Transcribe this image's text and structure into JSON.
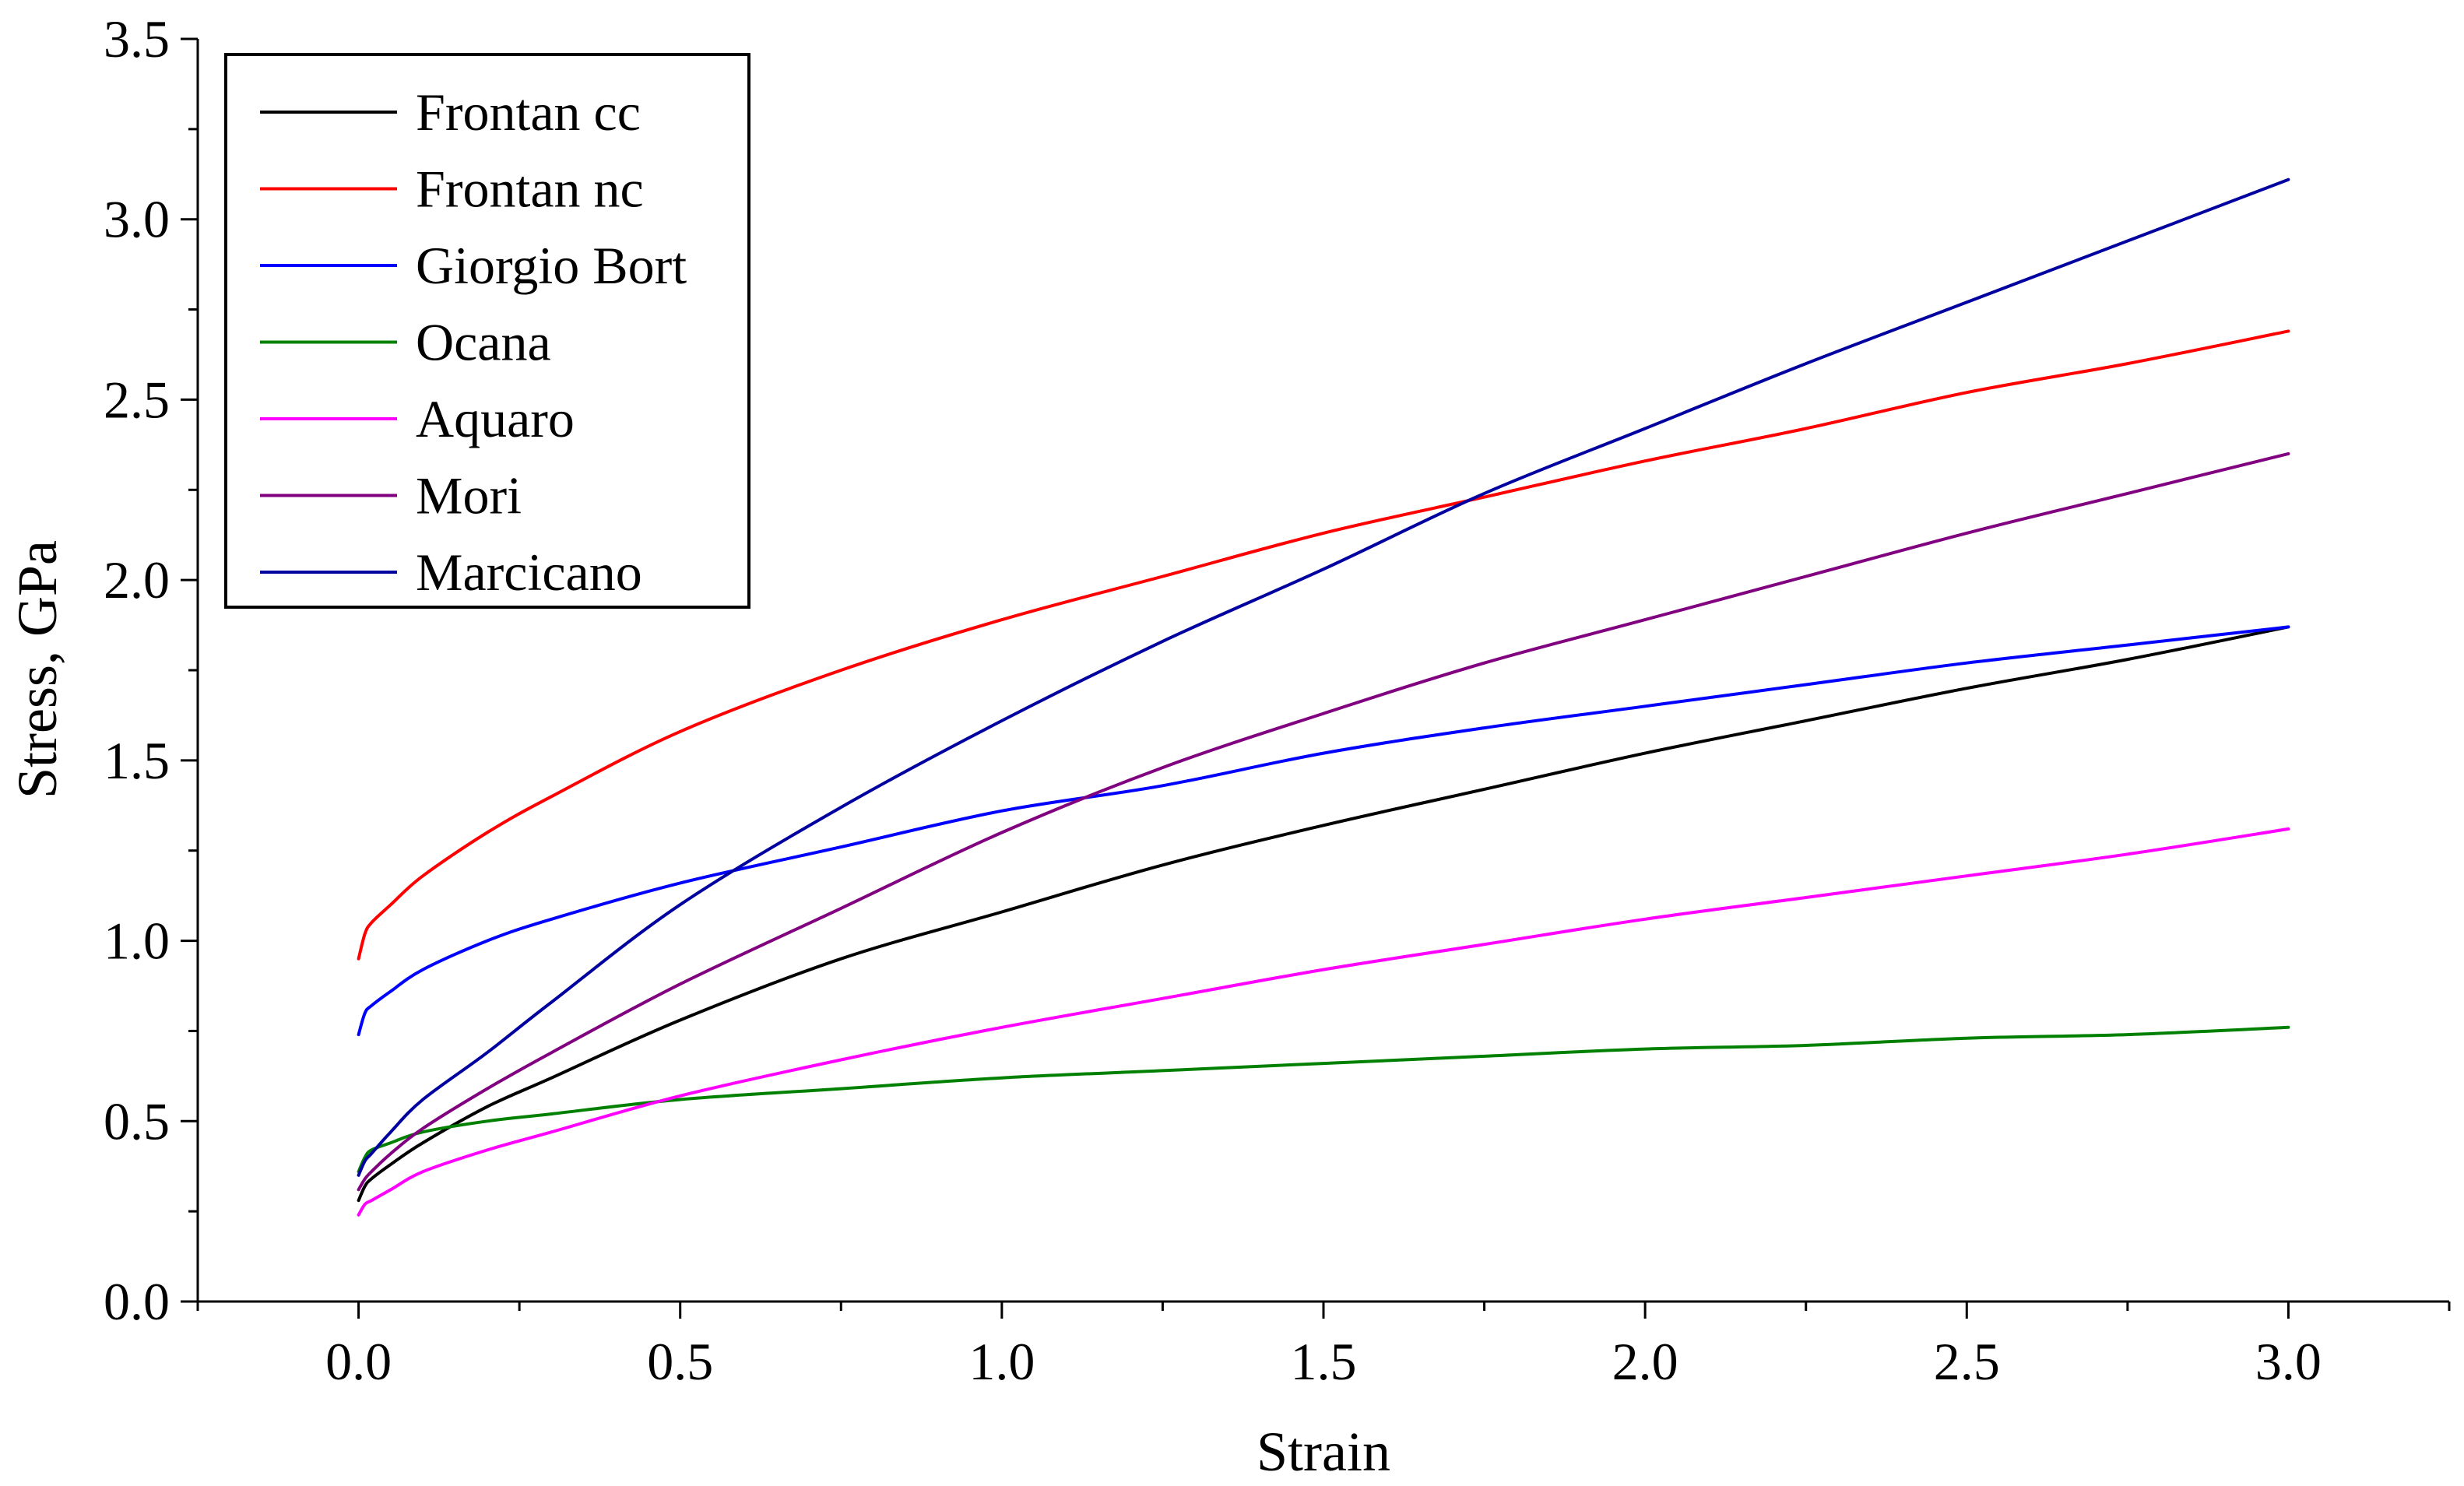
{
  "chart_data": {
    "type": "line",
    "title": "",
    "xlabel": "Strain",
    "ylabel": "Stress, GPa",
    "xlim": [
      -0.25,
      3.25
    ],
    "ylim": [
      0.0,
      3.5
    ],
    "xticks": [
      "0.0",
      "0.5",
      "1.0",
      "1.5",
      "2.0",
      "2.5",
      "3.0"
    ],
    "yticks": [
      "0.0",
      "0.5",
      "1.0",
      "1.5",
      "2.0",
      "2.5",
      "3.0",
      "3.5"
    ],
    "grid": false,
    "legend_position": "top-left",
    "x": [
      0,
      0.01,
      0.02,
      0.05,
      0.1,
      0.2,
      0.3,
      0.5,
      0.75,
      1.0,
      1.25,
      1.5,
      1.75,
      2.0,
      2.25,
      2.5,
      2.75,
      3.0
    ],
    "series": [
      {
        "name": "Frontan cc",
        "color": "#000000",
        "values": [
          0.28,
          0.32,
          0.34,
          0.38,
          0.44,
          0.54,
          0.62,
          0.78,
          0.95,
          1.08,
          1.21,
          1.32,
          1.42,
          1.52,
          1.61,
          1.7,
          1.78,
          1.87
        ]
      },
      {
        "name": "Frontan nc",
        "color": "#ff0000",
        "values": [
          0.95,
          1.02,
          1.05,
          1.1,
          1.18,
          1.3,
          1.4,
          1.58,
          1.75,
          1.89,
          2.01,
          2.13,
          2.23,
          2.33,
          2.42,
          2.52,
          2.6,
          2.69
        ]
      },
      {
        "name": "Giorgio Bort",
        "color": "#0000ff",
        "values": [
          0.74,
          0.8,
          0.82,
          0.86,
          0.92,
          1.0,
          1.06,
          1.16,
          1.26,
          1.36,
          1.43,
          1.52,
          1.59,
          1.65,
          1.71,
          1.77,
          1.82,
          1.87
        ]
      },
      {
        "name": "Ocana",
        "color": "#008000",
        "values": [
          0.36,
          0.4,
          0.42,
          0.44,
          0.47,
          0.5,
          0.52,
          0.56,
          0.59,
          0.62,
          0.64,
          0.66,
          0.68,
          0.7,
          0.71,
          0.73,
          0.74,
          0.76
        ]
      },
      {
        "name": "Aquaro",
        "color": "#ff00ff",
        "values": [
          0.24,
          0.27,
          0.28,
          0.31,
          0.36,
          0.42,
          0.47,
          0.57,
          0.67,
          0.76,
          0.84,
          0.92,
          0.99,
          1.06,
          1.12,
          1.18,
          1.24,
          1.31
        ]
      },
      {
        "name": "Mori",
        "color": "#800080",
        "values": [
          0.31,
          0.34,
          0.36,
          0.41,
          0.48,
          0.59,
          0.69,
          0.88,
          1.09,
          1.3,
          1.48,
          1.63,
          1.77,
          1.89,
          2.01,
          2.13,
          2.24,
          2.35
        ]
      },
      {
        "name": "Marcicano",
        "color": "#0000a0",
        "values": [
          0.35,
          0.39,
          0.41,
          0.47,
          0.56,
          0.69,
          0.83,
          1.1,
          1.37,
          1.61,
          1.83,
          2.03,
          2.24,
          2.42,
          2.6,
          2.77,
          2.94,
          3.11
        ]
      }
    ]
  }
}
